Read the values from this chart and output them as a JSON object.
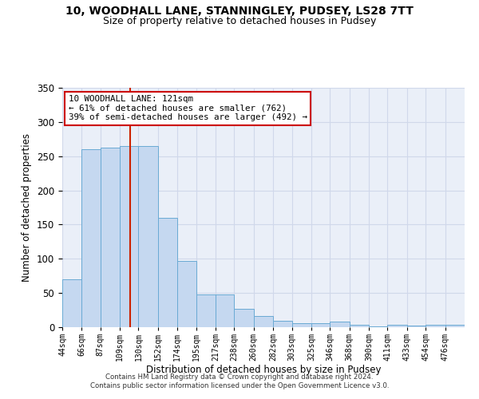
{
  "title1": "10, WOODHALL LANE, STANNINGLEY, PUDSEY, LS28 7TT",
  "title2": "Size of property relative to detached houses in Pudsey",
  "xlabel": "Distribution of detached houses by size in Pudsey",
  "ylabel": "Number of detached properties",
  "footer1": "Contains HM Land Registry data © Crown copyright and database right 2024.",
  "footer2": "Contains public sector information licensed under the Open Government Licence v3.0.",
  "annotation_line1": "10 WOODHALL LANE: 121sqm",
  "annotation_line2": "← 61% of detached houses are smaller (762)",
  "annotation_line3": "39% of semi-detached houses are larger (492) →",
  "property_size": 121,
  "bar_edges": [
    44,
    66,
    87,
    109,
    130,
    152,
    174,
    195,
    217,
    238,
    260,
    282,
    303,
    325,
    346,
    368,
    390,
    411,
    433,
    454,
    476
  ],
  "bar_heights": [
    70,
    260,
    262,
    265,
    265,
    160,
    97,
    48,
    48,
    27,
    16,
    9,
    6,
    6,
    8,
    4,
    1,
    4,
    2,
    4,
    3
  ],
  "bar_color": "#c5d8f0",
  "bar_edge_color": "#6aaad4",
  "vline_color": "#cc2200",
  "grid_color": "#d0d8ea",
  "bg_color": "#eaeff8",
  "annotation_box_edge": "#cc0000",
  "ylim": [
    0,
    350
  ],
  "yticks": [
    0,
    50,
    100,
    150,
    200,
    250,
    300,
    350
  ],
  "tick_labels": [
    "44sqm",
    "66sqm",
    "87sqm",
    "109sqm",
    "130sqm",
    "152sqm",
    "174sqm",
    "195sqm",
    "217sqm",
    "238sqm",
    "260sqm",
    "282sqm",
    "303sqm",
    "325sqm",
    "346sqm",
    "368sqm",
    "390sqm",
    "411sqm",
    "433sqm",
    "454sqm",
    "476sqm"
  ]
}
